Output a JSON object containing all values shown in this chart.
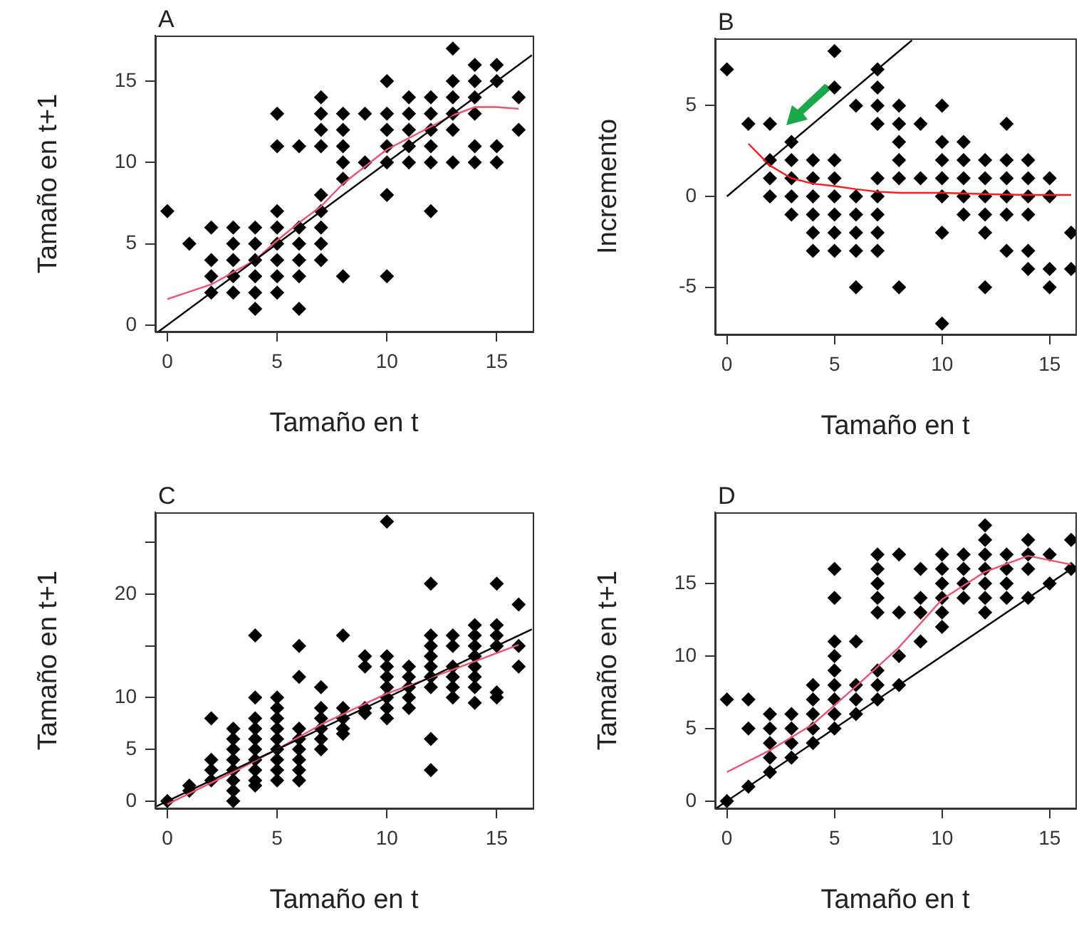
{
  "chart_data": [
    {
      "type": "scatter",
      "title": "A",
      "xlabel": "Tamaño en t",
      "ylabel": "Tamaño en t+1",
      "xlim": [
        -0.55,
        16.64
      ],
      "ylim": [
        -0.4,
        17.8
      ],
      "xticks": [
        0,
        5,
        10,
        15
      ],
      "yticks": [
        0,
        5,
        10,
        15
      ],
      "grid": false,
      "legend": false,
      "series": [
        {
          "type": "scatter",
          "marker": "diamond",
          "color": "#000000",
          "x": [
            0,
            1,
            2,
            2,
            2,
            2,
            3,
            3,
            3,
            3,
            3,
            4,
            4,
            4,
            4,
            4,
            4,
            5,
            5,
            5,
            5,
            5,
            5,
            5,
            5,
            6,
            6,
            6,
            6,
            6,
            6,
            7,
            7,
            7,
            7,
            7,
            7,
            7,
            7,
            7,
            8,
            8,
            8,
            8,
            8,
            8,
            9,
            9,
            10,
            10,
            10,
            10,
            10,
            10,
            10,
            11,
            11,
            11,
            11,
            11,
            12,
            12,
            12,
            12,
            12,
            12,
            13,
            13,
            13,
            13,
            13,
            13,
            14,
            14,
            14,
            14,
            14,
            14,
            15,
            15,
            15,
            15,
            16,
            16
          ],
          "values": [
            7,
            5,
            6,
            4,
            3,
            2,
            6,
            5,
            4,
            3,
            2,
            6,
            5,
            4,
            3,
            2,
            1,
            13,
            11,
            7,
            6,
            5,
            4,
            3,
            2,
            11,
            6,
            5,
            4,
            3,
            1,
            14,
            13,
            12,
            11,
            8,
            7,
            6,
            5,
            4,
            13,
            12,
            11,
            10,
            9,
            3,
            13,
            10,
            15,
            13,
            12,
            11,
            10,
            8,
            3,
            14,
            13,
            12,
            11,
            10,
            14,
            13,
            12,
            11,
            10,
            7,
            17,
            15,
            14,
            13,
            12,
            10,
            16,
            15,
            14,
            13,
            11,
            10,
            16,
            15,
            11,
            10,
            14,
            12
          ]
        },
        {
          "type": "line",
          "color": "#000000",
          "x": [
            -0.4,
            16.6
          ],
          "values": [
            -0.4,
            16.6
          ]
        },
        {
          "type": "line",
          "color": "#f0506e",
          "x": [
            0,
            2,
            4,
            5,
            6,
            7,
            8,
            10,
            12,
            13,
            14,
            15,
            16
          ],
          "values": [
            1.6,
            2.5,
            4,
            5.2,
            6.3,
            7.3,
            8.7,
            10.8,
            12.2,
            12.9,
            13.4,
            13.4,
            13.3
          ]
        }
      ]
    },
    {
      "type": "scatter",
      "title": "B",
      "xlabel": "Tamaño en t",
      "ylabel": "Incremento",
      "xlim": [
        -0.55,
        16.2
      ],
      "ylim": [
        -7.6,
        8.7
      ],
      "xticks": [
        0,
        5,
        10,
        15
      ],
      "yticks": [
        -5,
        0,
        5
      ],
      "grid": false,
      "legend": false,
      "series": [
        {
          "type": "scatter",
          "marker": "diamond",
          "color": "#000000",
          "x": [
            0,
            1,
            2,
            2,
            2,
            2,
            3,
            3,
            3,
            3,
            3,
            4,
            4,
            4,
            4,
            4,
            4,
            5,
            5,
            5,
            5,
            5,
            5,
            5,
            5,
            6,
            6,
            6,
            6,
            6,
            6,
            7,
            7,
            7,
            7,
            7,
            7,
            7,
            7,
            7,
            8,
            8,
            8,
            8,
            8,
            8,
            9,
            9,
            10,
            10,
            10,
            10,
            10,
            10,
            10,
            11,
            11,
            11,
            11,
            11,
            12,
            12,
            12,
            12,
            12,
            12,
            13,
            13,
            13,
            13,
            13,
            13,
            14,
            14,
            14,
            14,
            14,
            14,
            15,
            15,
            15,
            15,
            16,
            16
          ],
          "values": [
            7,
            4,
            4,
            2,
            1,
            0,
            3,
            2,
            1,
            0,
            -1,
            2,
            1,
            0,
            -1,
            -2,
            -3,
            8,
            6,
            2,
            1,
            0,
            -1,
            -2,
            -3,
            5,
            0,
            -1,
            -2,
            -3,
            -5,
            7,
            6,
            5,
            4,
            1,
            0,
            -1,
            -2,
            -3,
            5,
            4,
            3,
            2,
            1,
            -5,
            4,
            1,
            5,
            3,
            2,
            1,
            0,
            -2,
            -7,
            3,
            2,
            1,
            0,
            -1,
            2,
            1,
            0,
            -1,
            -2,
            -5,
            4,
            2,
            1,
            0,
            -1,
            -3,
            2,
            1,
            0,
            -1,
            -3,
            -4,
            1,
            0,
            -4,
            -5,
            -2,
            -4
          ]
        },
        {
          "type": "line",
          "color": "#000000",
          "x": [
            0,
            8.6
          ],
          "values": [
            0,
            8.6
          ]
        },
        {
          "type": "line",
          "color": "#ff1a1a",
          "x": [
            1,
            2,
            3,
            4,
            5,
            6,
            7,
            8,
            10,
            12,
            14,
            16
          ],
          "values": [
            2.9,
            1.7,
            1.0,
            0.7,
            0.57,
            0.4,
            0.26,
            0.2,
            0.2,
            0.13,
            0.08,
            0.08
          ]
        }
      ]
    },
    {
      "type": "scatter",
      "title": "C",
      "xlabel": "Tamaño en t",
      "ylabel": "Tamaño en t+1",
      "xlim": [
        -0.55,
        16.64
      ],
      "ylim": [
        -0.7,
        27.9
      ],
      "xticks": [
        0,
        5,
        10,
        15
      ],
      "yticks": [
        0,
        5,
        10,
        {
          "value": 15,
          "label": null
        },
        20,
        {
          "value": 25,
          "label": null
        }
      ],
      "grid": false,
      "legend": false,
      "series": [
        {
          "type": "scatter",
          "marker": "diamond",
          "color": "#000000",
          "x": [
            0,
            1,
            1,
            2,
            2,
            2,
            2,
            3,
            3,
            3,
            3,
            3,
            3,
            3,
            3,
            4,
            4,
            4,
            4,
            4,
            4,
            4,
            4,
            4,
            4,
            5,
            5,
            5,
            5,
            5,
            5,
            5,
            5,
            5,
            6,
            6,
            6,
            6,
            6,
            6,
            6,
            6,
            7,
            7,
            7,
            7,
            7,
            7,
            8,
            8,
            8,
            8,
            8,
            9,
            9,
            9,
            9,
            10,
            10,
            10,
            10,
            10,
            10,
            10,
            10,
            11,
            11,
            11,
            11,
            11,
            12,
            12,
            12,
            12,
            12,
            12,
            12,
            12,
            12,
            13,
            13,
            13,
            13,
            13,
            13,
            14,
            14,
            14,
            14,
            14,
            14,
            14,
            14,
            15,
            15,
            15,
            15,
            15,
            15,
            16,
            16,
            16
          ],
          "values": [
            0,
            1,
            1.5,
            8,
            4,
            3,
            2,
            7,
            6,
            5,
            4,
            3,
            2,
            1,
            0,
            16,
            10,
            8,
            7,
            6,
            5,
            4,
            3,
            2,
            1.5,
            10,
            9,
            8,
            7,
            6,
            5,
            4,
            3,
            2,
            15,
            12,
            7,
            6,
            5,
            4,
            3,
            2,
            11,
            9,
            8,
            7,
            6,
            5,
            16,
            9,
            8,
            7,
            6.5,
            14,
            13,
            9,
            8.5,
            27,
            14,
            13,
            12,
            11,
            10,
            9,
            8,
            13,
            12,
            11,
            10,
            9,
            21,
            16,
            15,
            14,
            13,
            12,
            11,
            6,
            3,
            16,
            15,
            13,
            12,
            11,
            10,
            17,
            16,
            15,
            14,
            13,
            12,
            11,
            9.5,
            21,
            17,
            16,
            15,
            10.5,
            10,
            19,
            15,
            13
          ]
        },
        {
          "type": "line",
          "color": "#000000",
          "x": [
            -0.5,
            16.6
          ],
          "values": [
            -0.5,
            16.6
          ]
        },
        {
          "type": "line",
          "color": "#f0506e",
          "x": [
            0,
            3,
            5,
            7,
            10,
            13,
            16
          ],
          "values": [
            -0.3,
            2.8,
            5,
            7.4,
            10.4,
            12.7,
            15.1
          ]
        }
      ]
    },
    {
      "type": "scatter",
      "title": "D",
      "xlabel": "Tamaño en t",
      "ylabel": "Tamaño en t+1",
      "xlim": [
        -0.55,
        16.2
      ],
      "ylim": [
        -0.5,
        19.9
      ],
      "xticks": [
        0,
        5,
        10,
        15
      ],
      "yticks": [
        0,
        5,
        10,
        15
      ],
      "grid": false,
      "legend": false,
      "series": [
        {
          "type": "scatter",
          "marker": "diamond",
          "color": "#000000",
          "x": [
            0,
            0,
            1,
            1,
            1,
            2,
            2,
            2,
            2,
            2,
            3,
            3,
            3,
            3,
            4,
            4,
            4,
            4,
            4,
            5,
            5,
            5,
            5,
            5,
            5,
            5,
            5,
            5,
            6,
            6,
            6,
            6,
            7,
            7,
            7,
            7,
            7,
            7,
            7,
            7,
            8,
            8,
            8,
            8,
            9,
            9,
            9,
            9,
            10,
            10,
            10,
            10,
            10,
            10,
            11,
            11,
            11,
            11,
            12,
            12,
            12,
            12,
            12,
            12,
            12,
            13,
            13,
            13,
            13,
            14,
            14,
            14,
            14,
            15,
            15,
            16,
            16
          ],
          "values": [
            7,
            0,
            7,
            5,
            1,
            6,
            5,
            4,
            3,
            2,
            6,
            5,
            4,
            3,
            8,
            7,
            6,
            5,
            4,
            16,
            14,
            11,
            10,
            9,
            8,
            7,
            6,
            5,
            11,
            8,
            7,
            6,
            17,
            16,
            15,
            14,
            13,
            9,
            8,
            7,
            17,
            13,
            10,
            8,
            16,
            14,
            13,
            11,
            17,
            16,
            15,
            14,
            13,
            12,
            17,
            16,
            15,
            14,
            19,
            18,
            17,
            16,
            15,
            14,
            13,
            17,
            16,
            15,
            14,
            18,
            17,
            16,
            14,
            17,
            15,
            18,
            16
          ]
        },
        {
          "type": "line",
          "color": "#000000",
          "x": [
            -0.5,
            16.2
          ],
          "values": [
            -0.5,
            16.2
          ]
        },
        {
          "type": "line",
          "color": "#f0506e",
          "x": [
            0,
            2,
            4,
            6,
            8,
            10,
            12,
            14,
            16
          ],
          "values": [
            2,
            3.5,
            5.3,
            7.9,
            10.6,
            13.9,
            15.8,
            16.9,
            16.3
          ]
        }
      ]
    }
  ]
}
